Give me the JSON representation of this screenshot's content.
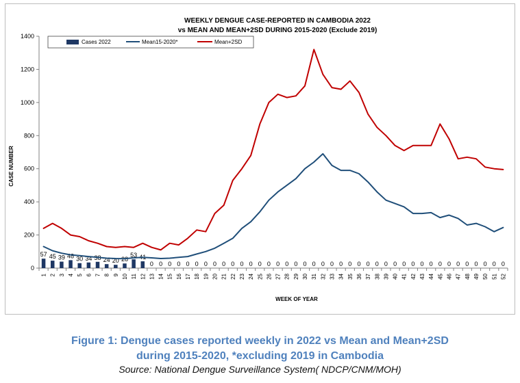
{
  "chart_data": {
    "type": "bar+line",
    "title": "WEEKLY DENGUE CASE-REPORTED IN CAMBODIA 2022",
    "subtitle": "vs MEAN AND MEAN+2SD DURING 2015-2020 (Exclude 2019)",
    "xlabel": "WEEK OF YEAR",
    "ylabel": "CASE NUMBER",
    "ylim": [
      0,
      1400
    ],
    "yticks": [
      0,
      200,
      400,
      600,
      800,
      1000,
      1200,
      1400
    ],
    "grid": false,
    "legend": "top-left",
    "weeks": [
      "1",
      "2",
      "3",
      "4",
      "5",
      "6",
      "7",
      "8",
      "9",
      "10",
      "11",
      "12",
      "13",
      "14",
      "15",
      "16",
      "17",
      "18",
      "19",
      "20",
      "21",
      "22",
      "23",
      "24",
      "25",
      "26",
      "27",
      "28",
      "29",
      "30",
      "31",
      "32",
      "33",
      "34",
      "35",
      "36",
      "37",
      "38",
      "39",
      "40",
      "41",
      "42",
      "43",
      "44",
      "45",
      "46",
      "47",
      "48",
      "49",
      "50",
      "51",
      "52"
    ],
    "series": [
      {
        "name": "Cases 2022",
        "kind": "bar",
        "color": "#1f3864",
        "values": [
          57,
          45,
          39,
          48,
          30,
          34,
          38,
          24,
          20,
          28,
          53,
          41,
          0,
          0,
          0,
          0,
          0,
          0,
          0,
          0,
          0,
          0,
          0,
          0,
          0,
          0,
          0,
          0,
          0,
          0,
          0,
          0,
          0,
          0,
          0,
          0,
          0,
          0,
          0,
          0,
          0,
          0,
          0,
          0,
          0,
          0,
          0,
          0,
          0,
          0,
          0,
          0
        ]
      },
      {
        "name": "Mean15-2020*",
        "kind": "line",
        "color": "#1f4e79",
        "values": [
          130,
          105,
          90,
          80,
          75,
          70,
          65,
          60,
          58,
          57,
          62,
          65,
          62,
          58,
          60,
          65,
          70,
          85,
          100,
          120,
          150,
          180,
          240,
          280,
          340,
          410,
          460,
          500,
          540,
          600,
          640,
          690,
          620,
          590,
          590,
          570,
          520,
          460,
          410,
          390,
          370,
          330,
          330,
          335,
          305,
          320,
          300,
          260,
          270,
          250,
          220,
          245
        ]
      },
      {
        "name": "Mean+2SD",
        "kind": "line",
        "color": "#c00000",
        "values": [
          240,
          270,
          240,
          200,
          190,
          165,
          150,
          130,
          125,
          130,
          125,
          150,
          125,
          110,
          150,
          140,
          180,
          230,
          220,
          330,
          380,
          530,
          600,
          680,
          870,
          1000,
          1050,
          1030,
          1040,
          1100,
          1320,
          1170,
          1090,
          1080,
          1130,
          1060,
          930,
          850,
          800,
          740,
          710,
          740,
          740,
          740,
          870,
          780,
          660,
          670,
          660,
          610,
          600,
          595
        ]
      }
    ]
  },
  "caption": {
    "line1": "Figure 1: Dengue cases reported weekly in 2022  vs  Mean and Mean+2SD",
    "line2": "during 2015-2020, *excluding 2019 in Cambodia",
    "source": "Source: National Dengue Surveillance System( NDCP/CNM/MOH)"
  }
}
